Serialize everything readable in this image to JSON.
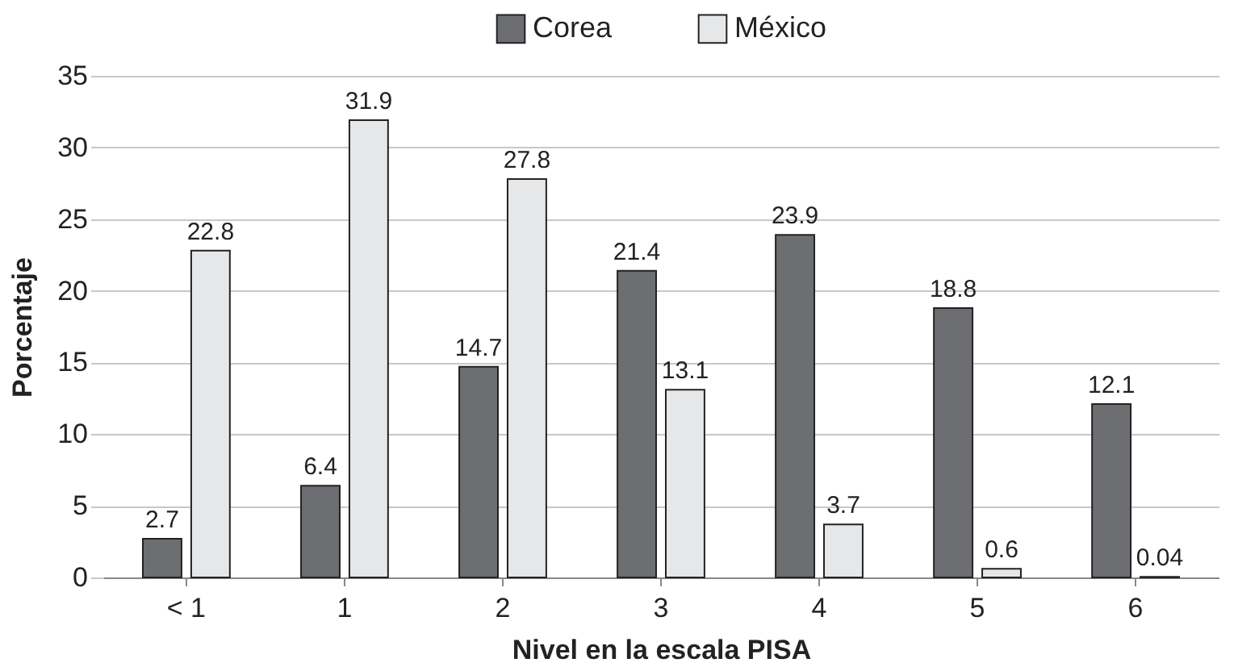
{
  "chart_data": {
    "type": "bar",
    "xlabel": "Nivel en la escala PISA",
    "ylabel": "Porcentaje",
    "categories": [
      "< 1",
      "1",
      "2",
      "3",
      "4",
      "5",
      "6"
    ],
    "series": [
      {
        "name": "Corea",
        "color": "#6d6e71",
        "values": [
          2.7,
          6.4,
          14.7,
          21.4,
          23.9,
          18.8,
          12.1
        ]
      },
      {
        "name": "México",
        "color": "#e6e7e8",
        "values": [
          22.8,
          31.9,
          27.8,
          13.1,
          3.7,
          0.6,
          0.04
        ]
      }
    ],
    "ylim": [
      0,
      35
    ],
    "yticks": [
      0,
      5,
      10,
      15,
      20,
      25,
      30,
      35
    ],
    "grid": "y",
    "legend": "top",
    "data_labels": true
  }
}
